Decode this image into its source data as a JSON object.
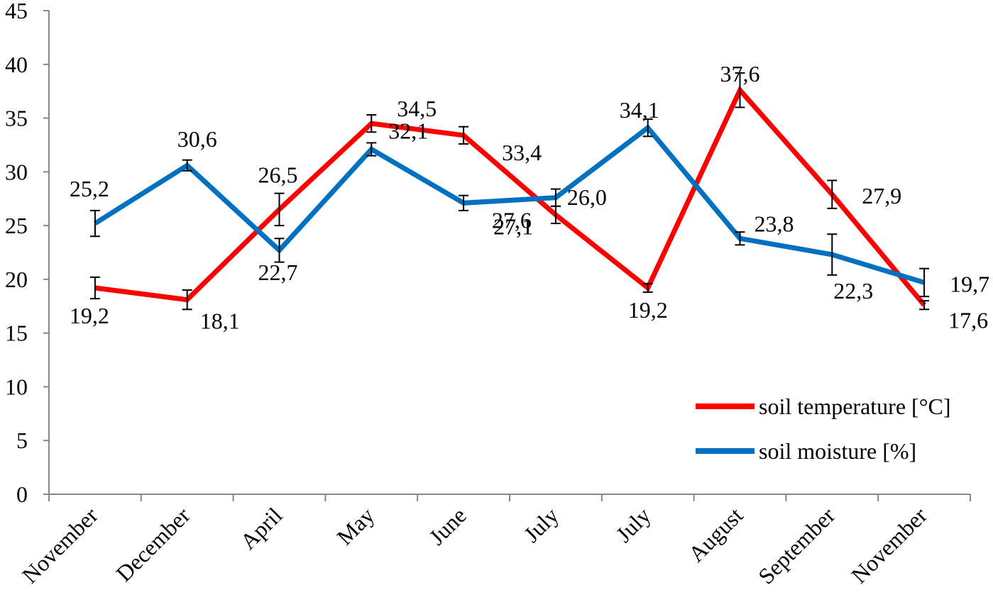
{
  "chart_data": {
    "type": "line",
    "categories": [
      "November",
      "December",
      "April",
      "May",
      "June",
      "July",
      "July",
      "August",
      "September",
      "November"
    ],
    "ylim": [
      0,
      45
    ],
    "yticks": [
      0,
      5,
      10,
      15,
      20,
      25,
      30,
      35,
      40,
      45
    ],
    "grid": false,
    "legend_position": "bottom-right",
    "series": [
      {
        "name": "soil temperature [°C]",
        "color": "#ff0000",
        "values": [
          19.2,
          18.1,
          26.5,
          34.5,
          33.4,
          26.0,
          19.2,
          37.6,
          27.9,
          17.6
        ],
        "labels": [
          "19,2",
          "18,1",
          "26,5",
          "34,5",
          "33,4",
          "26,0",
          "19,2",
          "37,6",
          "27,9",
          "17,6"
        ],
        "errors": [
          1.0,
          0.9,
          1.5,
          0.8,
          0.8,
          0.8,
          0.4,
          1.6,
          1.3,
          0.4
        ]
      },
      {
        "name": "soil moisture [%]",
        "color": "#0070c0",
        "values": [
          25.2,
          30.6,
          22.7,
          32.1,
          27.1,
          27.6,
          34.1,
          23.8,
          22.3,
          19.7
        ],
        "labels": [
          "25,2",
          "30,6",
          "22,7",
          "32,1",
          "27,1",
          "27,6",
          "34,1",
          "23,8",
          "22,3",
          "19,7"
        ],
        "errors": [
          1.2,
          0.5,
          1.1,
          0.6,
          0.7,
          0.8,
          0.8,
          0.6,
          1.9,
          1.3
        ]
      }
    ]
  }
}
